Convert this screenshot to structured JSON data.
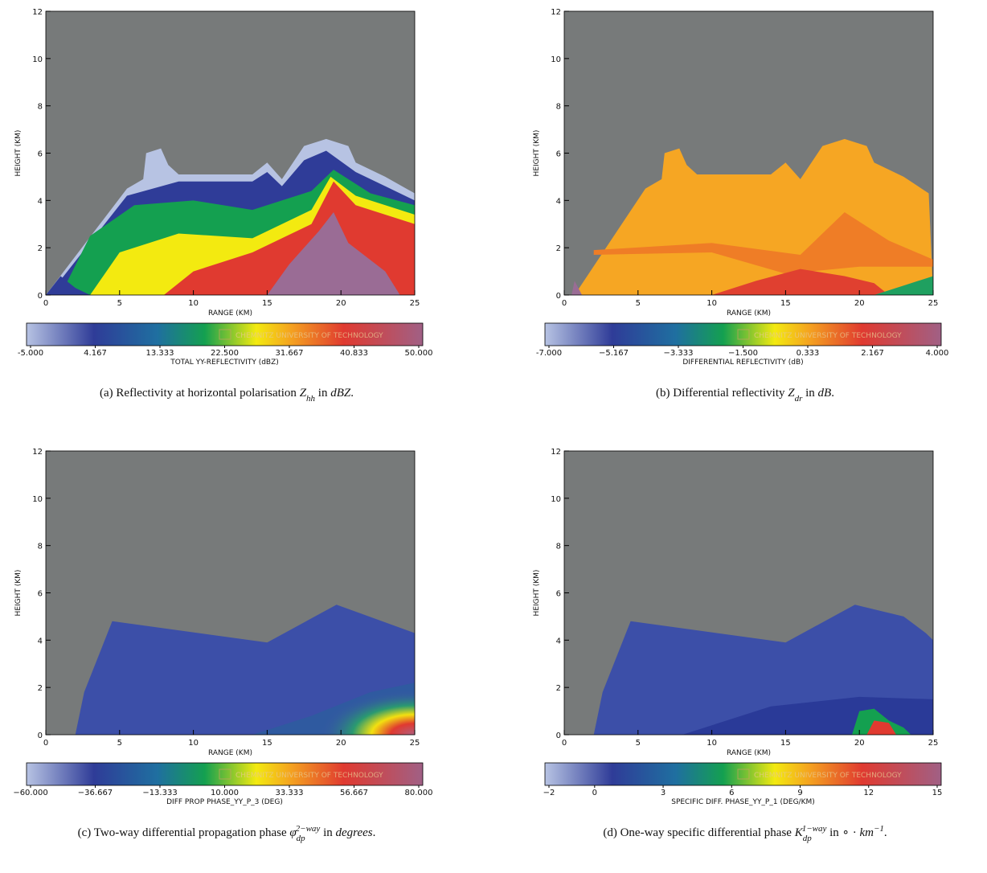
{
  "chart_data": [
    {
      "type": "rhi",
      "xlabel": "RANGE (KM)",
      "ylabel": "HEIGHT (KM)",
      "xlim": [
        0,
        25
      ],
      "ylim": [
        0,
        12
      ],
      "xticks": [
        0,
        5,
        10,
        15,
        20,
        25
      ],
      "yticks": [
        0,
        2,
        4,
        6,
        8,
        10,
        12
      ],
      "colorbar": {
        "ticks": [
          {
            "value": -5,
            "label": "-5.000"
          },
          4.167,
          13.333,
          {
            "value": 22.5,
            "label": "22.500"
          },
          31.667,
          40.833,
          {
            "value": 50,
            "label": "50.000"
          }
        ],
        "label": "TOTAL YY-REFLECTIVITY (dBZ)",
        "watermark": "CHEMNITZ UNIVERSITY OF TECHNOLOGY"
      },
      "caption": [
        {
          "text": "(a) Reflectivity at horizontal polarisation ",
          "style": "plain"
        },
        {
          "text": "Z",
          "style": "math"
        },
        {
          "text": "hh",
          "style": "sub"
        },
        {
          "text": " in ",
          "style": "plain"
        },
        {
          "text": "dBZ",
          "style": "math"
        },
        {
          "text": ".",
          "style": "plain"
        }
      ]
    },
    {
      "type": "rhi",
      "xlabel": "RANGE (KM)",
      "ylabel": "HEIGHT (KM)",
      "xlim": [
        0,
        25
      ],
      "ylim": [
        0,
        12
      ],
      "xticks": [
        0,
        5,
        10,
        15,
        20,
        25
      ],
      "yticks": [
        0,
        2,
        4,
        6,
        8,
        10,
        12
      ],
      "colorbar": {
        "ticks": [
          {
            "value": -7,
            "label": "-7.000"
          },
          {
            "value": -5.167,
            "label": "−5.167"
          },
          {
            "value": -3.333,
            "label": "−3.333"
          },
          {
            "value": -1.5,
            "label": "−1.500"
          },
          0.333,
          2.167,
          {
            "value": 4,
            "label": "4.000"
          }
        ],
        "label": "DIFFERENTIAL REFLECTIVITY (dB)",
        "watermark": "CHEMNITZ UNIVERSITY OF TECHNOLOGY"
      },
      "caption": [
        {
          "text": "(b) Differential reflectivity ",
          "style": "plain"
        },
        {
          "text": "Z",
          "style": "math"
        },
        {
          "text": "dr",
          "style": "sub"
        },
        {
          "text": " in ",
          "style": "plain"
        },
        {
          "text": "dB",
          "style": "math"
        },
        {
          "text": ".",
          "style": "plain"
        }
      ]
    },
    {
      "type": "rhi",
      "xlabel": "RANGE (KM)",
      "ylabel": "HEIGHT (KM)",
      "xlim": [
        0,
        25
      ],
      "ylim": [
        0,
        12
      ],
      "xticks": [
        0,
        5,
        10,
        15,
        20,
        25
      ],
      "yticks": [
        0,
        2,
        4,
        6,
        8,
        10,
        12
      ],
      "colorbar": {
        "ticks": [
          {
            "value": -60,
            "label": "−60.000"
          },
          {
            "value": -36.667,
            "label": "−36.667"
          },
          {
            "value": -13.333,
            "label": "−13.333"
          },
          {
            "value": 10,
            "label": "10.000"
          },
          33.333,
          56.667,
          {
            "value": 80,
            "label": "80.000"
          }
        ],
        "label": "DIFF PROP PHASE_YY_P_3 (DEG)",
        "watermark": "CHEMNITZ UNIVERSITY OF TECHNOLOGY"
      },
      "caption": [
        {
          "text": "(c) Two-way differential propagation phase ",
          "style": "plain"
        },
        {
          "text": "φ",
          "style": "math"
        },
        {
          "text": "dp",
          "style": "sub"
        },
        {
          "text": "2−way",
          "style": "sup"
        },
        {
          "text": " in ",
          "style": "plain"
        },
        {
          "text": "degrees",
          "style": "math"
        },
        {
          "text": ".",
          "style": "plain"
        }
      ]
    },
    {
      "type": "rhi",
      "xlabel": "RANGE (KM)",
      "ylabel": "HEIGHT (KM)",
      "xlim": [
        0,
        25
      ],
      "ylim": [
        0,
        12
      ],
      "xticks": [
        0,
        5,
        10,
        15,
        20,
        25
      ],
      "yticks": [
        0,
        2,
        4,
        6,
        8,
        10,
        12
      ],
      "colorbar": {
        "ticks": [
          {
            "value": -2,
            "label": "−2"
          },
          0,
          3,
          6,
          9,
          12,
          15
        ],
        "label": "SPECIFIC DIFF. PHASE_YY_P_1 (DEG/KM)",
        "watermark": "CHEMNITZ UNIVERSITY OF TECHNOLOGY"
      },
      "caption": [
        {
          "text": "(d) One-way specific differential phase ",
          "style": "plain"
        },
        {
          "text": "K",
          "style": "math"
        },
        {
          "text": "dp",
          "style": "sub"
        },
        {
          "text": "1−way",
          "style": "sup"
        },
        {
          "text": " in ∘ · ",
          "style": "plain"
        },
        {
          "text": "km",
          "style": "math"
        },
        {
          "text": "−1",
          "style": "sup"
        },
        {
          "text": ".",
          "style": "plain"
        }
      ]
    }
  ]
}
